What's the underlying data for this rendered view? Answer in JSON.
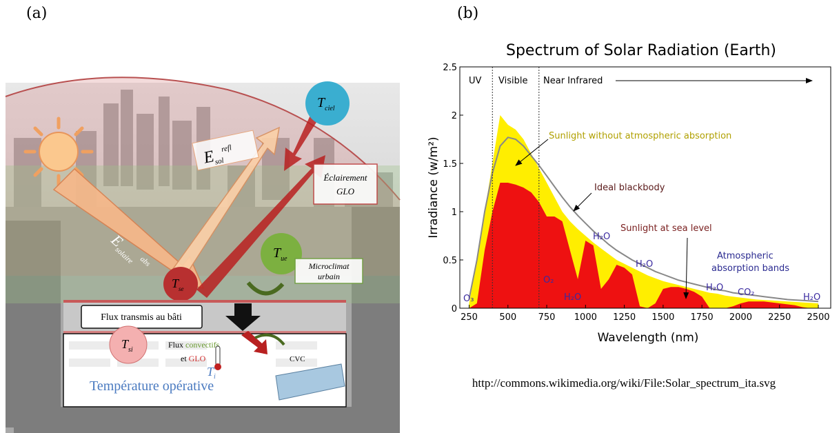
{
  "panel_a": {
    "label": "(a)",
    "e_refl": {
      "main": "E",
      "sub": "sol",
      "sup": "refl"
    },
    "t_ciel": {
      "main": "T",
      "sub": "ciel"
    },
    "eclairement": [
      "Éclairement",
      "GLO"
    ],
    "t_ue": {
      "main": "T",
      "sub": "ue"
    },
    "microclimat": [
      "Microclimat",
      "urbain"
    ],
    "e_abs": {
      "main": "E",
      "sub": "solaire",
      "sup": "abs"
    },
    "t_se": {
      "main": "T",
      "sub": "se"
    },
    "flux_transmis": "Flux transmis au bâti",
    "t_si": {
      "main": "T",
      "sub": "si"
    },
    "flux_convectifs": [
      "Flux ",
      "convectifs",
      "et ",
      "GLO"
    ],
    "t_i": {
      "main": "T",
      "sub": "i"
    },
    "cvc": "CVC",
    "temperature": "Température opérative"
  },
  "panel_b": {
    "label": "(b)",
    "source": "http://commons.wikimedia.org/wiki/File:Solar_spectrum_ita.svg"
  },
  "chart_data": {
    "type": "area",
    "title": "Spectrum of Solar Radiation (Earth)",
    "x_label": "Wavelength (nm)",
    "y_label": "Irradiance (w/m²)",
    "xlim": [
      190,
      2580
    ],
    "ylim": [
      0,
      2.5
    ],
    "xticks": [
      250,
      500,
      750,
      1000,
      1250,
      1500,
      1750,
      2000,
      2250,
      2500
    ],
    "yticks": [
      0,
      0.5,
      1,
      1.5,
      2,
      2.5
    ],
    "region_bounds": [
      400,
      700
    ],
    "x": [
      250,
      300,
      350,
      400,
      450,
      500,
      550,
      600,
      650,
      700,
      750,
      800,
      850,
      900,
      950,
      1000,
      1050,
      1100,
      1150,
      1200,
      1250,
      1300,
      1350,
      1400,
      1450,
      1500,
      1550,
      1600,
      1650,
      1700,
      1750,
      1800,
      1850,
      1900,
      1950,
      2000,
      2050,
      2100,
      2150,
      2200,
      2250,
      2300,
      2350,
      2400,
      2450,
      2500
    ],
    "series": [
      {
        "name": "Sunlight without atmospheric absorption",
        "kind": "area",
        "color": "#ffee00",
        "values": [
          0.05,
          0.5,
          1.0,
          1.5,
          2.0,
          1.9,
          1.85,
          1.75,
          1.6,
          1.45,
          1.3,
          1.15,
          1.0,
          0.9,
          0.82,
          0.75,
          0.68,
          0.62,
          0.56,
          0.5,
          0.46,
          0.42,
          0.38,
          0.34,
          0.31,
          0.28,
          0.26,
          0.24,
          0.22,
          0.2,
          0.18,
          0.16,
          0.15,
          0.13,
          0.12,
          0.11,
          0.1,
          0.09,
          0.085,
          0.08,
          0.075,
          0.07,
          0.065,
          0.06,
          0.055,
          0.05
        ]
      },
      {
        "name": "Sunlight at sea level",
        "kind": "area",
        "color": "#ee1111",
        "values": [
          0,
          0.05,
          0.6,
          1.0,
          1.3,
          1.3,
          1.28,
          1.25,
          1.2,
          1.1,
          0.95,
          0.95,
          0.9,
          0.6,
          0.3,
          0.7,
          0.65,
          0.2,
          0.3,
          0.45,
          0.42,
          0.35,
          0.02,
          0,
          0.05,
          0.2,
          0.22,
          0.22,
          0.2,
          0.17,
          0.12,
          0,
          0,
          0,
          0.02,
          0.05,
          0.07,
          0.07,
          0.07,
          0.06,
          0.05,
          0.04,
          0.03,
          0.01,
          0,
          0
        ]
      },
      {
        "name": "Ideal blackbody",
        "kind": "line",
        "color": "#888888",
        "values": [
          0.1,
          0.5,
          1.0,
          1.4,
          1.68,
          1.77,
          1.75,
          1.68,
          1.58,
          1.48,
          1.37,
          1.26,
          1.15,
          1.05,
          0.96,
          0.88,
          0.8,
          0.73,
          0.66,
          0.6,
          0.55,
          0.5,
          0.46,
          0.42,
          0.38,
          0.35,
          0.32,
          0.29,
          0.27,
          0.25,
          0.23,
          0.21,
          0.19,
          0.18,
          0.16,
          0.15,
          0.14,
          0.13,
          0.12,
          0.11,
          0.1,
          0.09,
          0.085,
          0.08,
          0.075,
          0.07
        ]
      }
    ],
    "annotations": [
      "UV",
      "Visible",
      "Near Infrared",
      "Sunlight without atmospheric absorption",
      "Ideal blackbody",
      "Sunlight at sea level",
      "Atmospheric",
      "absorption bands"
    ],
    "absorption_labels": [
      "O₃",
      "O₂",
      "H₂O",
      "H₂O",
      "H₂O",
      "H₂O",
      "CO₂",
      "H₂O"
    ]
  }
}
